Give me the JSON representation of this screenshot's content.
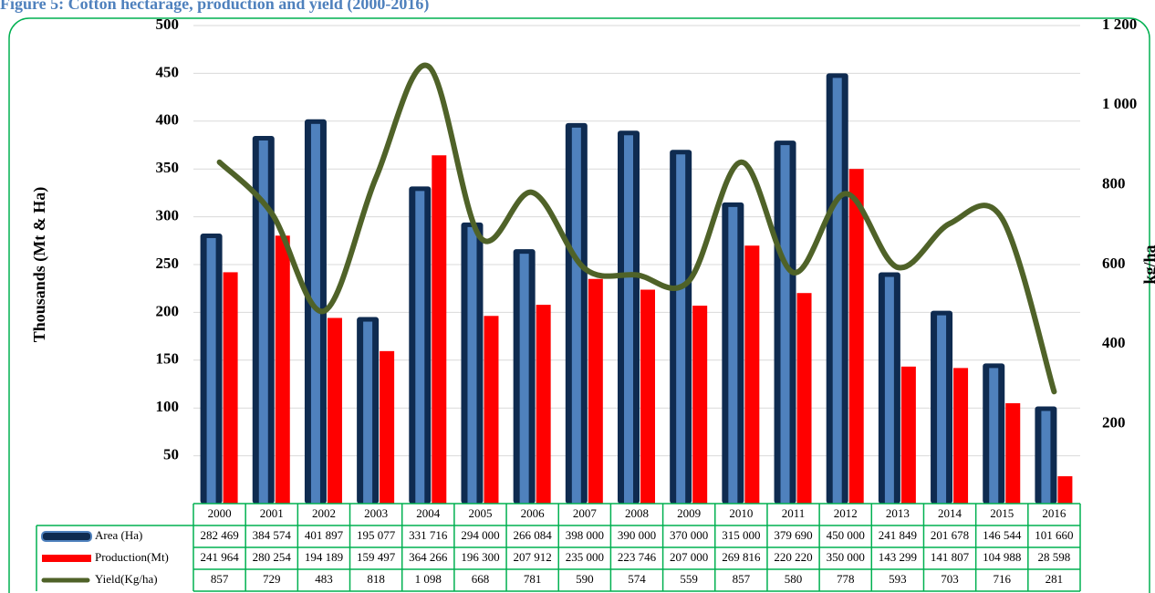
{
  "chart_data": {
    "type": "bar",
    "title": "Figure 5: Cotton hectarage, production and yield (2000-2016)",
    "ylabel": "Thousands (Mt & Ha)",
    "y2label": "kg/ha",
    "categories": [
      "2000",
      "2001",
      "2002",
      "2003",
      "2004",
      "2005",
      "2006",
      "2007",
      "2008",
      "2009",
      "2010",
      "2011",
      "2012",
      "2013",
      "2014",
      "2015",
      "2016"
    ],
    "series": [
      {
        "name": "Area (Ha)",
        "type": "bar",
        "color": "#0f2b50",
        "inner_color": "#4f81bd",
        "values": [
          282.469,
          384.574,
          401.897,
          195.077,
          331.716,
          294.0,
          266.084,
          398.0,
          390.0,
          370.0,
          315.0,
          379.69,
          450.0,
          241.849,
          201.678,
          146.544,
          101.66
        ],
        "value_labels": [
          "282 469",
          "384 574",
          "401 897",
          "195 077",
          "331 716",
          "294 000",
          "266 084",
          "398 000",
          "390 000",
          "370 000",
          "315 000",
          "379 690",
          "450 000",
          "241 849",
          "201 678",
          "146 544",
          "101 660"
        ]
      },
      {
        "name": "Production(Mt)",
        "type": "bar",
        "color": "#ff0000",
        "values": [
          241.964,
          280.254,
          194.189,
          159.497,
          364.266,
          196.3,
          207.912,
          235.0,
          223.746,
          207.0,
          269.816,
          220.22,
          350.0,
          143.299,
          141.807,
          104.988,
          28.598
        ],
        "value_labels": [
          "241 964",
          "280 254",
          "194 189",
          "159 497",
          "364 266",
          "196 300",
          "207 912",
          "235 000",
          "223 746",
          "207 000",
          "269 816",
          "220 220",
          "350 000",
          "143 299",
          "141 807",
          "104 988",
          "28 598"
        ]
      },
      {
        "name": "Yield(Kg/ha)",
        "type": "line",
        "axis": "y2",
        "color": "#4f6228",
        "values": [
          857,
          729,
          483,
          818,
          1098,
          668,
          781,
          590,
          574,
          559,
          857,
          580,
          778,
          593,
          703,
          716,
          281
        ],
        "value_labels": [
          "857",
          "729",
          "483",
          "818",
          "1 098",
          "668",
          "781",
          "590",
          "574",
          "559",
          "857",
          "580",
          "778",
          "593",
          "703",
          "716",
          "281"
        ]
      }
    ],
    "ylim": [
      0,
      500
    ],
    "yticks": [
      50,
      100,
      150,
      200,
      250,
      300,
      350,
      400,
      450,
      500
    ],
    "y2lim": [
      0,
      1200
    ],
    "y2ticks": [
      200,
      400,
      600,
      800,
      {
        "value": 1000,
        "label": "1 000"
      },
      {
        "value": 1200,
        "label": "1 200"
      }
    ],
    "grid": true,
    "legend": "table"
  }
}
